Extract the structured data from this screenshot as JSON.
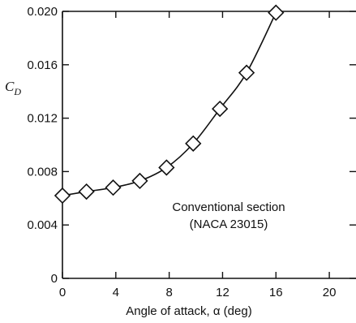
{
  "chart_data": {
    "type": "scatter",
    "title": "",
    "xlabel": "Angle of attack, α (deg)",
    "ylabel": "C_D",
    "ylabel_main": "C",
    "ylabel_sub": "D",
    "xlim": [
      0,
      22
    ],
    "ylim": [
      0,
      0.02
    ],
    "x_ticks": [
      0,
      4,
      8,
      12,
      16,
      20
    ],
    "x_tick_labels": [
      "0",
      "4",
      "8",
      "12",
      "16",
      "20"
    ],
    "y_ticks": [
      0,
      0.004,
      0.008,
      0.012,
      0.016,
      0.02
    ],
    "y_tick_labels": [
      "0",
      "0.004",
      "0.008",
      "0.012",
      "0.016",
      "0.020"
    ],
    "grid": false,
    "marker": "diamond",
    "series": [
      {
        "x": [
          0,
          1.8,
          3.8,
          5.8,
          7.8,
          9.8,
          11.8,
          13.8,
          16.0
        ],
        "y": [
          0.0062,
          0.0065,
          0.0068,
          0.0073,
          0.0083,
          0.0101,
          0.0127,
          0.0154,
          0.0199
        ]
      }
    ],
    "annotations": [
      "Conventional section",
      "(NACA 23015)"
    ]
  }
}
